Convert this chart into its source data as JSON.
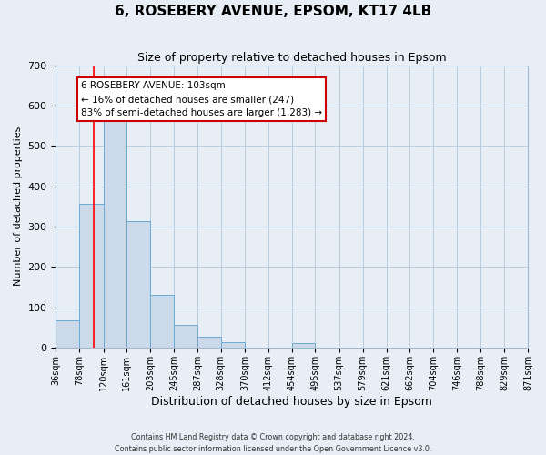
{
  "title": "6, ROSEBERY AVENUE, EPSOM, KT17 4LB",
  "subtitle": "Size of property relative to detached houses in Epsom",
  "xlabel": "Distribution of detached houses by size in Epsom",
  "ylabel": "Number of detached properties",
  "bar_edges": [
    36,
    78,
    120,
    161,
    203,
    245,
    287,
    328,
    370,
    412,
    454,
    495,
    537,
    579,
    621,
    662,
    704,
    746,
    788,
    829,
    871
  ],
  "bar_heights": [
    68,
    357,
    567,
    313,
    130,
    57,
    27,
    14,
    0,
    0,
    10,
    0,
    0,
    0,
    0,
    0,
    0,
    0,
    0,
    0
  ],
  "bar_color": "#ccd9e8",
  "bar_edge_color": "#6aaad4",
  "vline_x": 103,
  "vline_color": "red",
  "ylim": [
    0,
    700
  ],
  "yticks": [
    0,
    100,
    200,
    300,
    400,
    500,
    600,
    700
  ],
  "annotation_title": "6 ROSEBERY AVENUE: 103sqm",
  "annotation_line1": "← 16% of detached houses are smaller (247)",
  "annotation_line2": "83% of semi-detached houses are larger (1,283) →",
  "annotation_box_color": "#ffffff",
  "annotation_box_edge": "#cc0000",
  "footer1": "Contains HM Land Registry data © Crown copyright and database right 2024.",
  "footer2": "Contains public sector information licensed under the Open Government Licence v3.0.",
  "tick_labels": [
    "36sqm",
    "78sqm",
    "120sqm",
    "161sqm",
    "203sqm",
    "245sqm",
    "287sqm",
    "328sqm",
    "370sqm",
    "412sqm",
    "454sqm",
    "495sqm",
    "537sqm",
    "579sqm",
    "621sqm",
    "662sqm",
    "704sqm",
    "746sqm",
    "788sqm",
    "829sqm",
    "871sqm"
  ],
  "background_color": "#e8eef5",
  "grid_color": "#b8cce0",
  "title_fontsize": 11,
  "subtitle_fontsize": 9,
  "xlabel_fontsize": 9,
  "ylabel_fontsize": 8,
  "ytick_fontsize": 8,
  "xtick_fontsize": 7
}
